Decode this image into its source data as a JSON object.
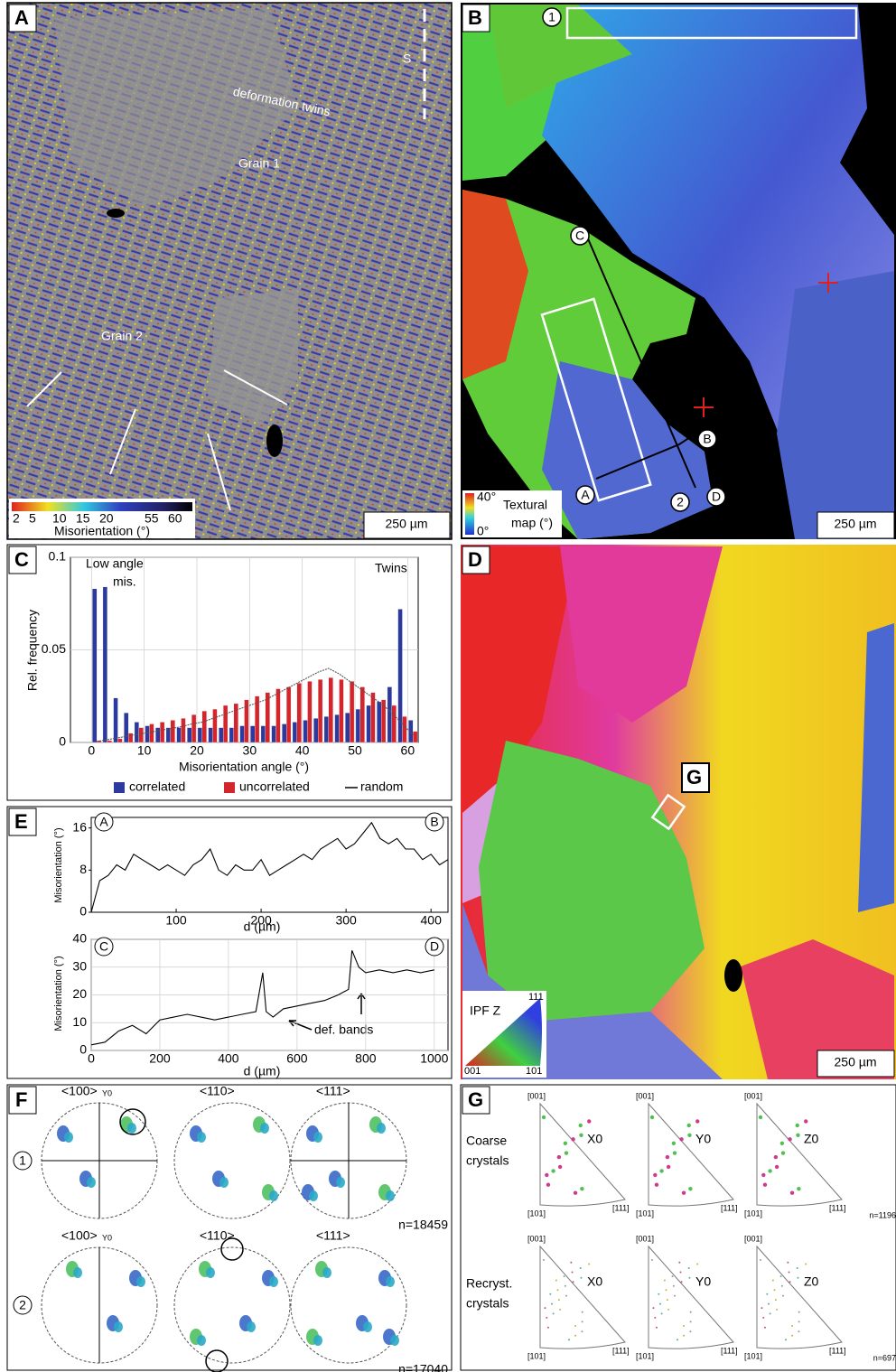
{
  "panels": {
    "A": {
      "label": "A",
      "s_label": "S",
      "twins_label": "deformation twins",
      "grain1": "Grain 1",
      "grain2": "Grain 2",
      "colorbar_ticks": [
        2,
        5,
        10,
        15,
        20,
        55,
        60
      ],
      "colorbar_title": "Misorientation (°)",
      "scale": "250 µm"
    },
    "B": {
      "label": "B",
      "markers": [
        "1",
        "2",
        "A",
        "B",
        "C",
        "D"
      ],
      "colorbar_max": "40°",
      "colorbar_min": "0°",
      "colorbar_title": [
        "Textural",
        "map (°)"
      ],
      "scale": "250 µm"
    },
    "C": {
      "label": "C"
    },
    "D": {
      "label": "D",
      "inset_label": "G",
      "legend_title": "IPF Z",
      "legend_corners": [
        "111",
        "001",
        "101"
      ],
      "scale": "250 µm"
    },
    "E": {
      "label": "E"
    },
    "F": {
      "label": "F",
      "row_markers": [
        "1",
        "2"
      ],
      "titles": [
        "<100>",
        "<110>",
        "<111>"
      ],
      "axis": "Y0",
      "n": [
        "n=18459",
        "n=17040"
      ]
    },
    "G": {
      "label": "G",
      "row_labels": [
        [
          "Coarse",
          "crystals"
        ],
        [
          "Recryst.",
          "crystals"
        ]
      ],
      "directions": [
        "X0",
        "Y0",
        "Z0"
      ],
      "corners": [
        "[001]",
        "[101]",
        "[111]"
      ],
      "n": [
        "n=1196",
        "n=697"
      ]
    }
  },
  "chart_data": [
    {
      "type": "bar",
      "ylabel": "Rel. frequency",
      "xlabel": "Misorientation angle (°)",
      "annotations": [
        "Low angle",
        "mis.",
        "Twins"
      ],
      "x": [
        1,
        3,
        5,
        7,
        9,
        11,
        13,
        15,
        17,
        19,
        21,
        23,
        25,
        27,
        29,
        31,
        33,
        35,
        37,
        39,
        41,
        43,
        45,
        47,
        49,
        51,
        53,
        55,
        57,
        59,
        61
      ],
      "series": [
        {
          "name": "correlated",
          "color": "#2b3a9c",
          "kind": "bar",
          "values": [
            0.083,
            0.084,
            0.024,
            0.016,
            0.011,
            0.009,
            0.008,
            0.008,
            0.008,
            0.008,
            0.008,
            0.008,
            0.008,
            0.008,
            0.009,
            0.009,
            0.009,
            0.009,
            0.01,
            0.011,
            0.012,
            0.013,
            0.014,
            0.015,
            0.016,
            0.018,
            0.02,
            0.022,
            0.03,
            0.072,
            0.012
          ]
        },
        {
          "name": "uncorrelated",
          "color": "#d3252c",
          "kind": "bar",
          "values": [
            0.001,
            0.001,
            0.002,
            0.005,
            0.008,
            0.01,
            0.011,
            0.012,
            0.013,
            0.015,
            0.017,
            0.018,
            0.02,
            0.021,
            0.023,
            0.025,
            0.027,
            0.029,
            0.03,
            0.032,
            0.033,
            0.034,
            0.035,
            0.034,
            0.033,
            0.03,
            0.027,
            0.023,
            0.02,
            0.014,
            0.006
          ]
        },
        {
          "name": "random",
          "color": "#555555",
          "kind": "line",
          "values": [
            0.0005,
            0.0015,
            0.0025,
            0.0035,
            0.0045,
            0.0055,
            0.0065,
            0.0075,
            0.0085,
            0.01,
            0.011,
            0.013,
            0.015,
            0.017,
            0.019,
            0.021,
            0.023,
            0.026,
            0.029,
            0.032,
            0.035,
            0.038,
            0.04,
            0.037,
            0.033,
            0.029,
            0.025,
            0.021,
            0.016,
            0.01,
            0.004
          ]
        }
      ],
      "xlim": [
        -4,
        62
      ],
      "ylim": [
        0,
        0.1
      ],
      "xticks": [
        0,
        10,
        20,
        30,
        40,
        50,
        60
      ],
      "yticks": [
        0,
        0.05,
        0.1
      ],
      "grid": true,
      "legend": "bottom"
    },
    {
      "type": "line",
      "ylabel": "Misorientation (°)",
      "xlabel": "d (µm)",
      "endpoints": [
        "A",
        "B"
      ],
      "x": [
        0,
        10,
        20,
        30,
        40,
        50,
        60,
        70,
        80,
        90,
        100,
        110,
        120,
        130,
        140,
        150,
        160,
        170,
        180,
        190,
        200,
        210,
        220,
        230,
        240,
        250,
        260,
        270,
        280,
        290,
        300,
        310,
        320,
        330,
        340,
        350,
        360,
        370,
        380,
        390,
        400,
        410,
        420
      ],
      "values": [
        0,
        6,
        7,
        9,
        8,
        11,
        10,
        9,
        8,
        9,
        8,
        7,
        9,
        10,
        12,
        8,
        7,
        9,
        8,
        8,
        10,
        7,
        8,
        9,
        10,
        11,
        10,
        12,
        13,
        14,
        12,
        13,
        15,
        17,
        14,
        13,
        14,
        12,
        12,
        10,
        11,
        9,
        10
      ],
      "color": "#000000",
      "xlim": [
        0,
        420
      ],
      "ylim": [
        0,
        18
      ],
      "xticks": [
        100,
        200,
        300,
        400
      ],
      "yticks": [
        0,
        8,
        16
      ],
      "grid": false
    },
    {
      "type": "line",
      "ylabel": "Misorientation (°)",
      "xlabel": "d (µm)",
      "endpoints": [
        "C",
        "D"
      ],
      "annotation": "def. bands",
      "x": [
        0,
        40,
        80,
        120,
        160,
        200,
        240,
        280,
        320,
        360,
        400,
        440,
        480,
        500,
        510,
        530,
        560,
        600,
        640,
        680,
        720,
        750,
        760,
        780,
        800,
        840,
        880,
        920,
        960,
        1000
      ],
      "values": [
        2,
        3,
        7,
        9,
        6,
        11,
        12,
        13,
        12,
        11,
        12,
        13,
        14,
        28,
        14,
        12,
        15,
        16,
        17,
        18,
        20,
        22,
        36,
        30,
        28,
        29,
        28,
        29,
        28,
        29
      ],
      "color": "#000000",
      "xlim": [
        0,
        1040
      ],
      "ylim": [
        0,
        40
      ],
      "xticks": [
        0,
        200,
        400,
        600,
        800,
        1000
      ],
      "yticks": [
        0,
        10,
        20,
        30,
        40
      ],
      "grid": true
    }
  ]
}
